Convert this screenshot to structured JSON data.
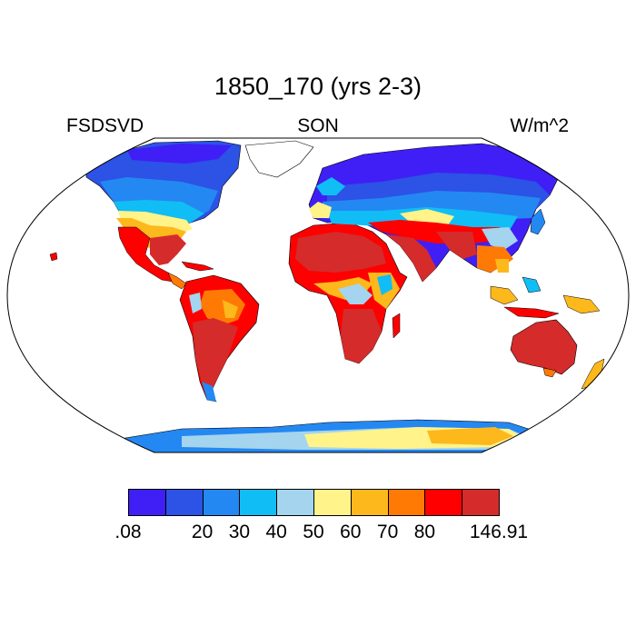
{
  "title": "1850_170 (yrs 2-3)",
  "left_label": "FSDSVD",
  "center_label": "SON",
  "right_label": "W/m^2",
  "colorbar": {
    "colors": [
      "#3f1ff6",
      "#2c52e6",
      "#2488f2",
      "#11bdf5",
      "#a4d4ee",
      "#fff38a",
      "#fdb81c",
      "#fe7a04",
      "#fe0000",
      "#d52b2b"
    ],
    "labels": [
      ".08",
      "20",
      "30",
      "40",
      "50",
      "60",
      "70",
      "80",
      "146.91"
    ]
  },
  "colors": {
    "ocean": "#ffffff",
    "frame": "#000000",
    "land_outline": "#000000"
  }
}
